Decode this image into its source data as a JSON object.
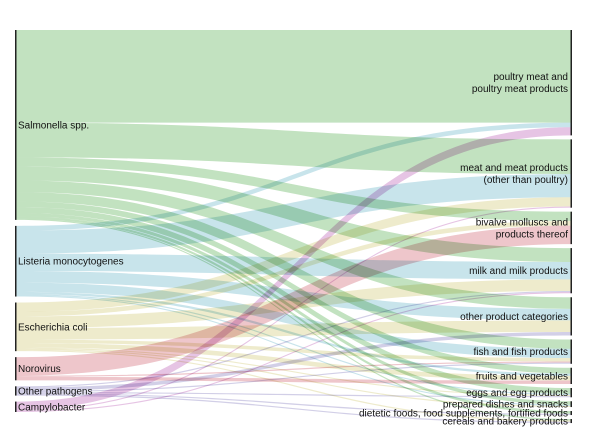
{
  "chart_data": {
    "type": "sankey",
    "sources": [
      {
        "id": "sal",
        "label": "Salmonella spp.",
        "color": "#9dd19a"
      },
      {
        "id": "lis",
        "label": "Listeria monocytogenes",
        "color": "#a7d3de"
      },
      {
        "id": "eco",
        "label": "Escherichia coli",
        "color": "#e3dfad"
      },
      {
        "id": "nor",
        "label": "Norovirus",
        "color": "#e4a3ab"
      },
      {
        "id": "oth",
        "label": "Other pathogens",
        "color": "#b7b2d8"
      },
      {
        "id": "cam",
        "label": "Campylobacter",
        "color": "#d79fd4"
      }
    ],
    "targets": [
      {
        "id": "pm",
        "lines": [
          "poultry meat and",
          "poultry meat products"
        ]
      },
      {
        "id": "mm",
        "lines": [
          "meat and meat products",
          "(other than poultry)"
        ]
      },
      {
        "id": "bm",
        "lines": [
          "bivalve molluscs and",
          "products thereof"
        ]
      },
      {
        "id": "milk",
        "lines": [
          "milk and milk products"
        ]
      },
      {
        "id": "opc",
        "lines": [
          "other product categories"
        ]
      },
      {
        "id": "fish",
        "lines": [
          "fish and fish products"
        ]
      },
      {
        "id": "fv",
        "lines": [
          "fruits and vegetables"
        ]
      },
      {
        "id": "egg",
        "lines": [
          "eggs and egg products"
        ]
      },
      {
        "id": "prep",
        "lines": [
          "prepared dishes and snacks"
        ]
      },
      {
        "id": "diet",
        "lines": [
          "dietetic foods, food supplements, fortified foods"
        ]
      },
      {
        "id": "cer",
        "lines": [
          "cereals and bakery products"
        ]
      }
    ],
    "links": [
      {
        "source": "sal",
        "target": "pm",
        "value": 80
      },
      {
        "source": "sal",
        "target": "mm",
        "value": 30
      },
      {
        "source": "sal",
        "target": "bm",
        "value": 8
      },
      {
        "source": "sal",
        "target": "milk",
        "value": 12
      },
      {
        "source": "sal",
        "target": "opc",
        "value": 10
      },
      {
        "source": "sal",
        "target": "fish",
        "value": 8
      },
      {
        "source": "sal",
        "target": "fv",
        "value": 5
      },
      {
        "source": "sal",
        "target": "egg",
        "value": 5
      },
      {
        "source": "sal",
        "target": "prep",
        "value": 3
      },
      {
        "source": "sal",
        "target": "diet",
        "value": 2
      },
      {
        "source": "sal",
        "target": "cer",
        "value": 1
      },
      {
        "source": "lis",
        "target": "pm",
        "value": 4
      },
      {
        "source": "lis",
        "target": "mm",
        "value": 20
      },
      {
        "source": "lis",
        "target": "milk",
        "value": 15
      },
      {
        "source": "lis",
        "target": "opc",
        "value": 10
      },
      {
        "source": "lis",
        "target": "fish",
        "value": 8
      },
      {
        "source": "lis",
        "target": "fv",
        "value": 2
      },
      {
        "source": "lis",
        "target": "egg",
        "value": 1
      },
      {
        "source": "lis",
        "target": "prep",
        "value": 1
      },
      {
        "source": "eco",
        "target": "mm",
        "value": 8
      },
      {
        "source": "eco",
        "target": "bm",
        "value": 4
      },
      {
        "source": "eco",
        "target": "milk",
        "value": 10
      },
      {
        "source": "eco",
        "target": "opc",
        "value": 10
      },
      {
        "source": "eco",
        "target": "fish",
        "value": 3
      },
      {
        "source": "eco",
        "target": "fv",
        "value": 4
      },
      {
        "source": "eco",
        "target": "egg",
        "value": 1
      },
      {
        "source": "eco",
        "target": "prep",
        "value": 1
      },
      {
        "source": "eco",
        "target": "cer",
        "value": 1
      },
      {
        "source": "nor",
        "target": "bm",
        "value": 16
      },
      {
        "source": "nor",
        "target": "fv",
        "value": 3
      },
      {
        "source": "nor",
        "target": "fish",
        "value": 1
      },
      {
        "source": "oth",
        "target": "opc",
        "value": 3
      },
      {
        "source": "oth",
        "target": "milk",
        "value": 1
      },
      {
        "source": "oth",
        "target": "fish",
        "value": 1
      },
      {
        "source": "oth",
        "target": "egg",
        "value": 1
      },
      {
        "source": "oth",
        "target": "diet",
        "value": 1
      },
      {
        "source": "oth",
        "target": "cer",
        "value": 1
      },
      {
        "source": "cam",
        "target": "pm",
        "value": 7
      },
      {
        "source": "cam",
        "target": "mm",
        "value": 1
      },
      {
        "source": "cam",
        "target": "milk",
        "value": 1
      }
    ]
  }
}
